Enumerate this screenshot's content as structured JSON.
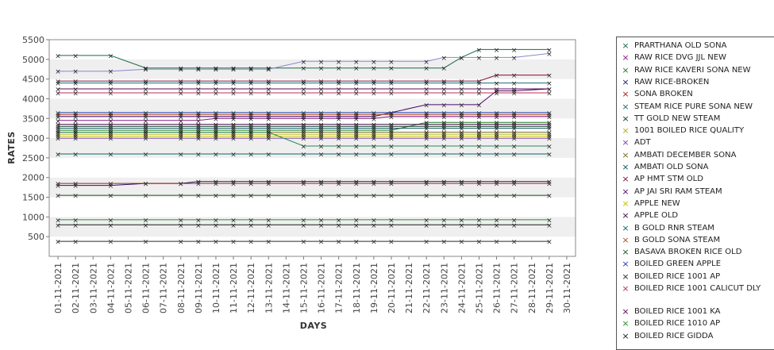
{
  "chart_data": {
    "type": "line",
    "ylabel": "RATES",
    "xlabel": "DAYS",
    "ylim": [
      0,
      5500
    ],
    "yticks": [
      500,
      1000,
      1500,
      2000,
      2500,
      3000,
      3500,
      4000,
      4500,
      5000,
      5500
    ],
    "grid": "horizontal alternating bands",
    "legend_position": "right",
    "categories": [
      "01-11-2021",
      "02-11-2021",
      "03-11-2021",
      "04-11-2021",
      "05-11-2021",
      "06-11-2021",
      "07-11-2021",
      "08-11-2021",
      "09-11-2021",
      "10-11-2021",
      "11-11-2021",
      "12-11-2021",
      "13-11-2021",
      "14-11-2021",
      "15-11-2021",
      "16-11-2021",
      "17-11-2021",
      "18-11-2021",
      "19-11-2021",
      "20-11-2021",
      "21-11-2021",
      "22-11-2021",
      "23-11-2021",
      "24-11-2021",
      "25-11-2021",
      "26-11-2021",
      "27-11-2021",
      "28-11-2021",
      "29-11-2021",
      "30-11-2021"
    ],
    "series": [
      {
        "name": "PRARTHANA OLD SONA",
        "color": "#1a6b4a",
        "values": [
          5100,
          5100,
          null,
          5100,
          null,
          4780,
          null,
          4780,
          4780,
          4780,
          4780,
          4780,
          4780,
          null,
          4780,
          4780,
          4780,
          4780,
          4780,
          4780,
          null,
          4780,
          4780,
          5050,
          5250,
          5250,
          5250,
          null,
          5250,
          null
        ]
      },
      {
        "name": "RAW RICE DVG JJL NEW",
        "color": "#8b1a8b",
        "values": [
          3450,
          3450,
          null,
          3450,
          null,
          3450,
          null,
          3450,
          3450,
          3500,
          3500,
          3500,
          3500,
          null,
          3500,
          3500,
          3500,
          3500,
          3500,
          3550,
          null,
          3550,
          3550,
          3550,
          3550,
          3550,
          3550,
          null,
          3550,
          null
        ]
      },
      {
        "name": "RAW RICE KAVERI SONA NEW",
        "color": "#1a7a1a",
        "values": [
          3200,
          3200,
          null,
          3200,
          null,
          3200,
          null,
          3200,
          3200,
          3200,
          3200,
          3200,
          3200,
          null,
          3200,
          3200,
          3200,
          3200,
          3200,
          3200,
          null,
          3400,
          3400,
          3400,
          3400,
          3400,
          3400,
          null,
          3400,
          null
        ]
      },
      {
        "name": "RAW RICE-BROKEN",
        "color": "#1a1a6b",
        "values": [
          1800,
          1800,
          null,
          1800,
          null,
          1850,
          null,
          1850,
          1900,
          1900,
          1900,
          1900,
          1900,
          null,
          1900,
          1900,
          1900,
          1900,
          1900,
          1900,
          null,
          1900,
          1900,
          1900,
          1900,
          1900,
          1900,
          null,
          1900,
          null
        ]
      },
      {
        "name": "SONA BROKEN",
        "color": "#b01a1a",
        "values": [
          1850,
          1850,
          null,
          1850,
          null,
          1850,
          null,
          1850,
          1850,
          1850,
          1850,
          1850,
          1850,
          null,
          1850,
          1850,
          1850,
          1850,
          1850,
          1850,
          null,
          1850,
          1850,
          1850,
          1850,
          1850,
          1850,
          null,
          1850,
          null
        ]
      },
      {
        "name": "STEAM RICE PURE SONA NEW",
        "color": "#1a6b6b",
        "values": [
          4400,
          4400,
          null,
          4400,
          null,
          4400,
          null,
          4400,
          4400,
          4400,
          4400,
          4400,
          4400,
          null,
          4400,
          4400,
          4400,
          4400,
          4400,
          4400,
          null,
          4400,
          4400,
          4400,
          4400,
          4400,
          4400,
          null,
          4400,
          null
        ]
      },
      {
        "name": "TT GOLD NEW STEAM",
        "color": "#0a3a2a",
        "values": [
          3300,
          3300,
          null,
          3300,
          null,
          3300,
          null,
          3300,
          3300,
          3300,
          3300,
          3300,
          3300,
          null,
          3300,
          3300,
          3300,
          3300,
          3300,
          3300,
          null,
          3300,
          3300,
          3300,
          3300,
          3300,
          3300,
          null,
          3300,
          null
        ]
      },
      {
        "name": "1001 BOILED RICE QUALITY",
        "color": "#b0b000",
        "values": [
          3100,
          3100,
          null,
          3100,
          null,
          3100,
          null,
          3100,
          3100,
          3100,
          3100,
          3100,
          3100,
          null,
          3100,
          3100,
          3100,
          3100,
          3100,
          3100,
          null,
          3100,
          3100,
          3100,
          3100,
          3100,
          3100,
          null,
          3100,
          null
        ]
      },
      {
        "name": "ADT",
        "color": "#7a3ab0",
        "values": [
          3000,
          3000,
          null,
          3000,
          null,
          3000,
          null,
          3000,
          3000,
          3000,
          3000,
          3000,
          3000,
          null,
          3000,
          3000,
          3000,
          3000,
          3000,
          3000,
          null,
          3000,
          3000,
          3000,
          3000,
          3000,
          3000,
          null,
          3000,
          null
        ]
      },
      {
        "name": "AMBATI DECEMBER SONA",
        "color": "#7a6a1a",
        "values": [
          3150,
          3150,
          null,
          3150,
          null,
          3150,
          null,
          3150,
          3150,
          3150,
          3150,
          3150,
          3150,
          null,
          3150,
          3150,
          3150,
          3150,
          3150,
          3150,
          null,
          3150,
          3150,
          3150,
          3150,
          3150,
          3150,
          null,
          3150,
          null
        ]
      },
      {
        "name": "AMBATI OLD SONA",
        "color": "#0a5a5a",
        "values": [
          3250,
          3250,
          null,
          3250,
          null,
          3250,
          null,
          3250,
          3250,
          3250,
          3250,
          3250,
          3250,
          null,
          3250,
          3250,
          3250,
          3250,
          3250,
          3250,
          null,
          3250,
          3250,
          3250,
          3250,
          3250,
          3250,
          null,
          3250,
          null
        ]
      },
      {
        "name": "AP HMT STM OLD",
        "color": "#8a0a3a",
        "values": [
          4450,
          4450,
          null,
          4450,
          null,
          4450,
          null,
          4450,
          4450,
          4450,
          4450,
          4450,
          4450,
          null,
          4450,
          4450,
          4450,
          4450,
          4450,
          4450,
          null,
          4450,
          4450,
          4450,
          4450,
          4600,
          4600,
          null,
          4600,
          null
        ]
      },
      {
        "name": "AP JAI SRI RAM STEAM",
        "color": "#4a0a6b",
        "values": [
          3550,
          3550,
          null,
          3550,
          null,
          3550,
          null,
          3550,
          3550,
          3550,
          3550,
          3550,
          3550,
          null,
          3550,
          3550,
          3550,
          3550,
          3550,
          3650,
          null,
          3850,
          3850,
          3850,
          3850,
          4200,
          4200,
          null,
          4250,
          null
        ]
      },
      {
        "name": "APPLE NEW",
        "color": "#c0c000",
        "values": [
          3050,
          3050,
          null,
          3050,
          null,
          3050,
          null,
          3050,
          3050,
          3050,
          3050,
          3050,
          3050,
          null,
          3050,
          3050,
          3050,
          3050,
          3050,
          3050,
          null,
          3050,
          3050,
          3050,
          3050,
          3050,
          3050,
          null,
          3050,
          null
        ]
      },
      {
        "name": "APPLE OLD",
        "color": "#3a0a3a",
        "values": [
          3350,
          3350,
          null,
          3350,
          null,
          3350,
          null,
          3350,
          3350,
          3350,
          3350,
          3350,
          3350,
          null,
          3350,
          3350,
          3350,
          3350,
          3350,
          3350,
          null,
          3350,
          3350,
          3350,
          3350,
          3350,
          3350,
          null,
          3350,
          null
        ]
      },
      {
        "name": "B GOLD RNR STEAM",
        "color": "#0a6a6a",
        "values": [
          2600,
          2600,
          null,
          2600,
          null,
          2600,
          null,
          2600,
          2600,
          2600,
          2600,
          2600,
          2600,
          null,
          2600,
          2600,
          2600,
          2600,
          2600,
          2600,
          null,
          2600,
          2600,
          2600,
          2600,
          2600,
          2600,
          null,
          2600,
          null
        ]
      },
      {
        "name": "B GOLD SONA STEAM",
        "color": "#b04a1a",
        "values": [
          3600,
          3600,
          null,
          3600,
          null,
          3600,
          null,
          3600,
          3600,
          3600,
          3600,
          3600,
          3600,
          null,
          3600,
          3600,
          3600,
          3600,
          3600,
          3600,
          null,
          3600,
          3600,
          3600,
          3600,
          3600,
          3600,
          null,
          3600,
          null
        ]
      },
      {
        "name": "BASAVA BROKEN RICE OLD",
        "color": "#0a5a1a",
        "values": [
          1550,
          1550,
          null,
          1550,
          null,
          1550,
          null,
          1550,
          1550,
          1550,
          1550,
          1550,
          1550,
          null,
          1550,
          1550,
          1550,
          1550,
          1550,
          1550,
          null,
          1550,
          1550,
          1550,
          1550,
          1550,
          1550,
          null,
          1550,
          null
        ]
      },
      {
        "name": "BOILED GREEN APPLE",
        "color": "#1a3ab0",
        "values": [
          3650,
          3650,
          null,
          3650,
          null,
          3650,
          null,
          3650,
          3650,
          3650,
          3650,
          3650,
          3650,
          null,
          3650,
          3650,
          3650,
          3650,
          3650,
          3650,
          null,
          3650,
          3650,
          3650,
          3650,
          3650,
          3650,
          null,
          3650,
          null
        ]
      },
      {
        "name": "BOILED RICE 1001 AP",
        "color": "#2a2a2a",
        "values": [
          380,
          380,
          null,
          380,
          null,
          380,
          null,
          380,
          380,
          380,
          380,
          380,
          380,
          null,
          380,
          380,
          380,
          380,
          380,
          380,
          null,
          380,
          380,
          380,
          380,
          380,
          380,
          null,
          380,
          null
        ]
      },
      {
        "name": "BOILED RICE 1001 CALICUT DLY",
        "color": "#c02a5a",
        "values": [
          4150,
          4150,
          null,
          4150,
          null,
          4150,
          null,
          4150,
          4150,
          4150,
          4150,
          4150,
          4150,
          null,
          4150,
          4150,
          4150,
          4150,
          4150,
          4150,
          null,
          4150,
          4150,
          4150,
          4150,
          4150,
          4150,
          null,
          4150,
          null
        ]
      },
      {
        "name": "BOILED RICE 1001 KA",
        "color": "#5a0a5a",
        "values": [
          4250,
          4250,
          null,
          4250,
          null,
          4250,
          null,
          4250,
          4250,
          4250,
          4250,
          4250,
          4250,
          null,
          4250,
          4250,
          4250,
          4250,
          4250,
          4250,
          null,
          4250,
          4250,
          4250,
          4250,
          4250,
          4250,
          null,
          4250,
          null
        ]
      },
      {
        "name": "BOILED RICE 1010 AP",
        "color": "#2a8a2a",
        "values": [
          930,
          930,
          null,
          930,
          null,
          930,
          null,
          930,
          930,
          930,
          930,
          930,
          930,
          null,
          930,
          930,
          930,
          930,
          930,
          930,
          null,
          930,
          930,
          930,
          930,
          930,
          930,
          null,
          930,
          null
        ]
      },
      {
        "name": "BOILED RICE GIDDA",
        "color": "#1a1a1a",
        "values": [
          800,
          800,
          null,
          800,
          null,
          800,
          null,
          800,
          800,
          800,
          800,
          800,
          800,
          null,
          800,
          800,
          800,
          800,
          800,
          800,
          null,
          800,
          800,
          800,
          800,
          800,
          800,
          null,
          800,
          null
        ]
      }
    ],
    "extra_lines": [
      {
        "color": "#8888cc",
        "values": [
          4700,
          4700,
          null,
          4700,
          null,
          4750,
          null,
          4750,
          4750,
          4750,
          4750,
          4750,
          4750,
          null,
          4950,
          4950,
          4950,
          4950,
          4950,
          4950,
          null,
          4950,
          5050,
          5050,
          5050,
          5050,
          5050,
          null,
          5150,
          null
        ]
      },
      {
        "color": "#2a8a5a",
        "values": [
          3150,
          3150,
          null,
          3150,
          null,
          3150,
          null,
          3150,
          3150,
          3150,
          3150,
          3150,
          3150,
          null,
          2800,
          2800,
          2800,
          2800,
          2800,
          2800,
          null,
          2800,
          2800,
          2800,
          2800,
          2800,
          2800,
          null,
          2800,
          null
        ]
      }
    ]
  }
}
